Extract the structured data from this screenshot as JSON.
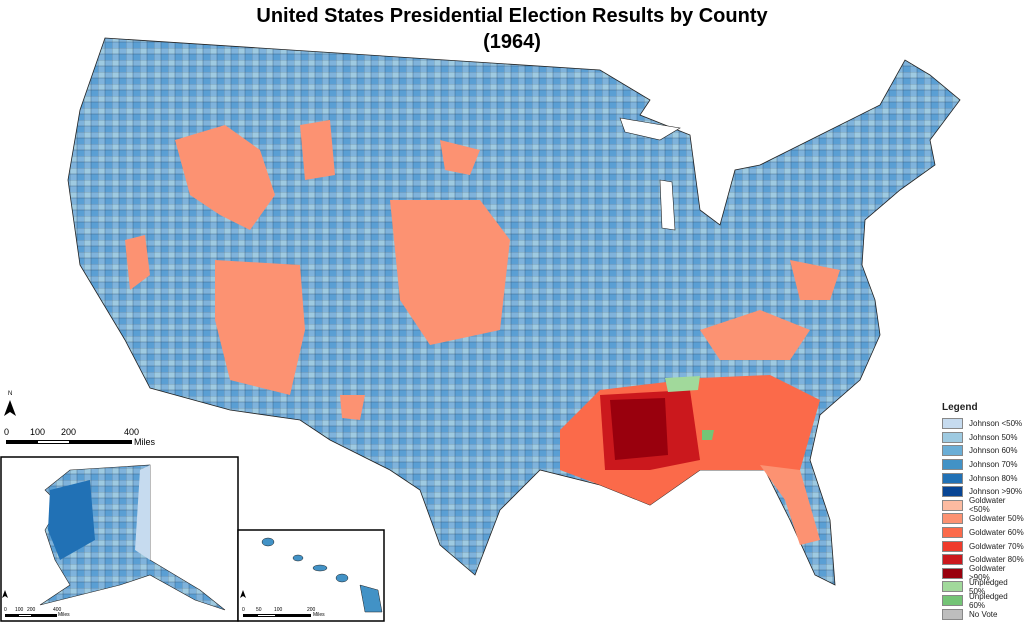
{
  "title": {
    "line1": "United States Presidential Election Results by County",
    "line2": "(1964)"
  },
  "legend": {
    "title": "Legend",
    "items": [
      {
        "label": "Johnson <50%",
        "color": "#c6dbef"
      },
      {
        "label": "Johnson 50%",
        "color": "#9ecae1"
      },
      {
        "label": "Johnson 60%",
        "color": "#6baed6"
      },
      {
        "label": "Johnson 70%",
        "color": "#4292c6"
      },
      {
        "label": "Johnson 80%",
        "color": "#2171b5"
      },
      {
        "label": "Johnson >90%",
        "color": "#084594"
      },
      {
        "label": "Goldwater <50%",
        "color": "#fcbba1"
      },
      {
        "label": "Goldwater 50%",
        "color": "#fc9272"
      },
      {
        "label": "Goldwater 60%",
        "color": "#fb6a4a"
      },
      {
        "label": "Goldwater 70%",
        "color": "#ef3b2c"
      },
      {
        "label": "Goldwater 80%",
        "color": "#cb181d"
      },
      {
        "label": "Goldwater >90%",
        "color": "#99000d"
      },
      {
        "label": "Unpledged 50%",
        "color": "#a1d99b"
      },
      {
        "label": "Unpledged 60%",
        "color": "#74c476"
      },
      {
        "label": "No Vote",
        "color": "#bdbdbd"
      }
    ]
  },
  "scale_main": {
    "ticks": [
      "0",
      "100",
      "200",
      "400"
    ],
    "unit": "Miles",
    "north": "N"
  },
  "scale_alaska": {
    "ticks": [
      "0",
      "100",
      "200",
      "400"
    ],
    "unit": "Miles"
  },
  "scale_hawaii": {
    "ticks": [
      "0",
      "50",
      "100",
      "200"
    ],
    "unit": "Miles"
  }
}
